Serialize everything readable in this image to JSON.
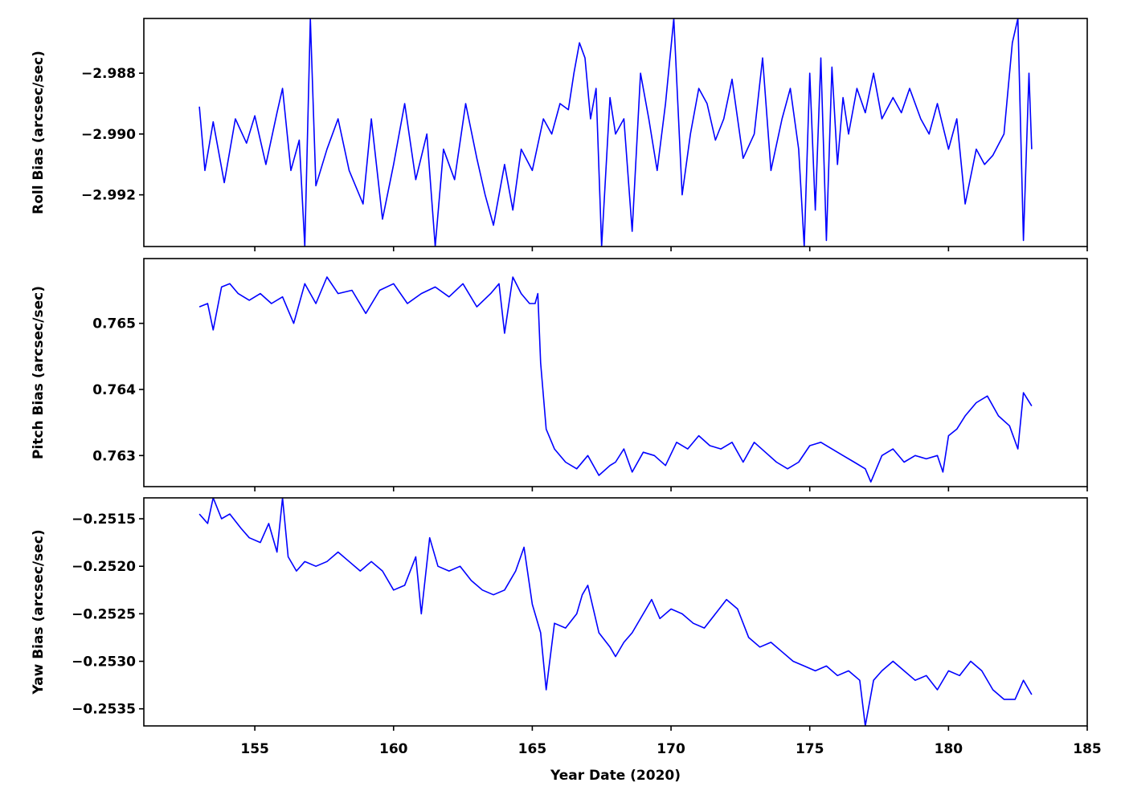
{
  "chart_data": {
    "type": "line",
    "xlabel": "Year Date (2020)",
    "xlim": [
      151,
      185
    ],
    "xticks": [
      155,
      160,
      165,
      170,
      175,
      180,
      185
    ],
    "line_color": "#0000ff",
    "grid": false,
    "panels": [
      {
        "name": "roll",
        "ylabel": "Roll Bias (arcsec/sec)",
        "ylim": [
          -2.9937,
          -2.9862
        ],
        "yticks": [
          -2.992,
          -2.99,
          -2.988
        ],
        "ytick_labels": [
          "−2.992",
          "−2.990",
          "−2.988"
        ],
        "series": {
          "x": [
            153.0,
            153.2,
            153.5,
            153.9,
            154.3,
            154.7,
            155.0,
            155.4,
            155.8,
            156.0,
            156.3,
            156.6,
            156.8,
            157.0,
            157.2,
            157.6,
            158.0,
            158.4,
            158.9,
            159.2,
            159.6,
            160.0,
            160.4,
            160.8,
            161.2,
            161.5,
            161.8,
            162.2,
            162.6,
            163.0,
            163.3,
            163.6,
            164.0,
            164.3,
            164.6,
            165.0,
            165.4,
            165.7,
            166.0,
            166.3,
            166.5,
            166.7,
            166.9,
            167.1,
            167.3,
            167.5,
            167.8,
            168.0,
            168.3,
            168.6,
            168.9,
            169.2,
            169.5,
            169.8,
            170.1,
            170.4,
            170.7,
            171.0,
            171.3,
            171.6,
            171.9,
            172.2,
            172.6,
            173.0,
            173.3,
            173.6,
            174.0,
            174.3,
            174.6,
            174.8,
            175.0,
            175.2,
            175.4,
            175.6,
            175.8,
            176.0,
            176.2,
            176.4,
            176.7,
            177.0,
            177.3,
            177.6,
            178.0,
            178.3,
            178.6,
            179.0,
            179.3,
            179.6,
            180.0,
            180.3,
            180.6,
            181.0,
            181.3,
            181.6,
            182.0,
            182.3,
            182.5,
            182.7,
            182.9,
            183.0
          ],
          "y": [
            -2.9891,
            -2.9912,
            -2.9896,
            -2.9916,
            -2.9895,
            -2.9903,
            -2.9894,
            -2.991,
            -2.9893,
            -2.9885,
            -2.9912,
            -2.9902,
            -2.9937,
            -2.9862,
            -2.9917,
            -2.9905,
            -2.9895,
            -2.9912,
            -2.9923,
            -2.9895,
            -2.9928,
            -2.991,
            -2.989,
            -2.9915,
            -2.99,
            -2.9937,
            -2.9905,
            -2.9915,
            -2.989,
            -2.9908,
            -2.992,
            -2.993,
            -2.991,
            -2.9925,
            -2.9905,
            -2.9912,
            -2.9895,
            -2.99,
            -2.989,
            -2.9892,
            -2.988,
            -2.987,
            -2.9875,
            -2.9895,
            -2.9885,
            -2.9937,
            -2.9888,
            -2.99,
            -2.9895,
            -2.9932,
            -2.988,
            -2.9895,
            -2.9912,
            -2.989,
            -2.9862,
            -2.992,
            -2.99,
            -2.9885,
            -2.989,
            -2.9902,
            -2.9895,
            -2.9882,
            -2.9908,
            -2.99,
            -2.9875,
            -2.9912,
            -2.9895,
            -2.9885,
            -2.9905,
            -2.9937,
            -2.988,
            -2.9925,
            -2.9875,
            -2.9935,
            -2.9878,
            -2.991,
            -2.9888,
            -2.99,
            -2.9885,
            -2.9893,
            -2.988,
            -2.9895,
            -2.9888,
            -2.9893,
            -2.9885,
            -2.9895,
            -2.99,
            -2.989,
            -2.9905,
            -2.9895,
            -2.9923,
            -2.9905,
            -2.991,
            -2.9907,
            -2.99,
            -2.987,
            -2.9862,
            -2.9935,
            -2.988,
            -2.9905
          ]
        }
      },
      {
        "name": "pitch",
        "ylabel": "Pitch Bias (arcsec/sec)",
        "ylim": [
          0.76253,
          0.76598
        ],
        "yticks": [
          0.763,
          0.764,
          0.765
        ],
        "ytick_labels": [
          "0.763",
          "0.764",
          "0.765"
        ],
        "series": {
          "x": [
            153.0,
            153.3,
            153.5,
            153.8,
            154.1,
            154.4,
            154.8,
            155.2,
            155.6,
            156.0,
            156.4,
            156.8,
            157.2,
            157.6,
            158.0,
            158.5,
            159.0,
            159.5,
            160.0,
            160.5,
            161.0,
            161.5,
            162.0,
            162.5,
            163.0,
            163.5,
            163.8,
            164.0,
            164.3,
            164.6,
            164.9,
            165.1,
            165.2,
            165.3,
            165.5,
            165.8,
            166.2,
            166.6,
            167.0,
            167.4,
            167.8,
            168.0,
            168.3,
            168.6,
            169.0,
            169.4,
            169.8,
            170.2,
            170.6,
            171.0,
            171.4,
            171.8,
            172.2,
            172.6,
            173.0,
            173.4,
            173.8,
            174.2,
            174.6,
            175.0,
            175.4,
            175.8,
            176.2,
            176.6,
            177.0,
            177.2,
            177.6,
            178.0,
            178.4,
            178.8,
            179.2,
            179.6,
            179.8,
            180.0,
            180.3,
            180.6,
            181.0,
            181.4,
            181.8,
            182.2,
            182.5,
            182.7,
            183.0
          ],
          "y": [
            0.76525,
            0.7653,
            0.7649,
            0.76555,
            0.7656,
            0.76545,
            0.76535,
            0.76545,
            0.7653,
            0.7654,
            0.765,
            0.7656,
            0.7653,
            0.7657,
            0.76545,
            0.7655,
            0.76515,
            0.7655,
            0.7656,
            0.7653,
            0.76545,
            0.76555,
            0.7654,
            0.7656,
            0.76525,
            0.76545,
            0.7656,
            0.76485,
            0.7657,
            0.76545,
            0.7653,
            0.7653,
            0.76545,
            0.7644,
            0.7634,
            0.7631,
            0.7629,
            0.7628,
            0.763,
            0.7627,
            0.76285,
            0.7629,
            0.7631,
            0.76275,
            0.76305,
            0.763,
            0.76285,
            0.7632,
            0.7631,
            0.7633,
            0.76315,
            0.7631,
            0.7632,
            0.7629,
            0.7632,
            0.76305,
            0.7629,
            0.7628,
            0.7629,
            0.76315,
            0.7632,
            0.7631,
            0.763,
            0.7629,
            0.7628,
            0.7626,
            0.763,
            0.7631,
            0.7629,
            0.763,
            0.76295,
            0.763,
            0.76275,
            0.7633,
            0.7634,
            0.7636,
            0.7638,
            0.7639,
            0.7636,
            0.76345,
            0.7631,
            0.76395,
            0.76375
          ]
        }
      },
      {
        "name": "yaw",
        "ylabel": "Yaw Bias (arcsec/sec)",
        "ylim": [
          -0.25368,
          -0.25128
        ],
        "yticks": [
          -0.2535,
          -0.253,
          -0.2525,
          -0.252,
          -0.2515
        ],
        "ytick_labels": [
          "−0.2535",
          "−0.2530",
          "−0.2525",
          "−0.2520",
          "−0.2515"
        ],
        "series": {
          "x": [
            153.0,
            153.3,
            153.5,
            153.8,
            154.1,
            154.5,
            154.8,
            155.2,
            155.5,
            155.8,
            156.0,
            156.2,
            156.5,
            156.8,
            157.2,
            157.6,
            158.0,
            158.4,
            158.8,
            159.2,
            159.6,
            160.0,
            160.4,
            160.8,
            161.0,
            161.3,
            161.6,
            162.0,
            162.4,
            162.8,
            163.2,
            163.6,
            164.0,
            164.4,
            164.7,
            165.0,
            165.3,
            165.5,
            165.8,
            166.2,
            166.6,
            166.8,
            167.0,
            167.4,
            167.8,
            168.0,
            168.3,
            168.6,
            169.0,
            169.3,
            169.6,
            170.0,
            170.4,
            170.8,
            171.2,
            171.6,
            172.0,
            172.4,
            172.8,
            173.2,
            173.6,
            174.0,
            174.4,
            174.8,
            175.2,
            175.6,
            176.0,
            176.4,
            176.8,
            177.0,
            177.3,
            177.6,
            178.0,
            178.4,
            178.8,
            179.2,
            179.6,
            180.0,
            180.4,
            180.8,
            181.2,
            181.6,
            182.0,
            182.4,
            182.7,
            183.0
          ],
          "y": [
            -0.25145,
            -0.25155,
            -0.25128,
            -0.2515,
            -0.25145,
            -0.2516,
            -0.2517,
            -0.25175,
            -0.25155,
            -0.25185,
            -0.25128,
            -0.2519,
            -0.25205,
            -0.25195,
            -0.252,
            -0.25195,
            -0.25185,
            -0.25195,
            -0.25205,
            -0.25195,
            -0.25205,
            -0.25225,
            -0.2522,
            -0.2519,
            -0.2525,
            -0.2517,
            -0.252,
            -0.25205,
            -0.252,
            -0.25215,
            -0.25225,
            -0.2523,
            -0.25225,
            -0.25205,
            -0.2518,
            -0.2524,
            -0.2527,
            -0.2533,
            -0.2526,
            -0.25265,
            -0.2525,
            -0.2523,
            -0.2522,
            -0.2527,
            -0.25285,
            -0.25295,
            -0.2528,
            -0.2527,
            -0.2525,
            -0.25235,
            -0.25255,
            -0.25245,
            -0.2525,
            -0.2526,
            -0.25265,
            -0.2525,
            -0.25235,
            -0.25245,
            -0.25275,
            -0.25285,
            -0.2528,
            -0.2529,
            -0.253,
            -0.25305,
            -0.2531,
            -0.25305,
            -0.25315,
            -0.2531,
            -0.2532,
            -0.25368,
            -0.2532,
            -0.2531,
            -0.253,
            -0.2531,
            -0.2532,
            -0.25315,
            -0.2533,
            -0.2531,
            -0.25315,
            -0.253,
            -0.2531,
            -0.2533,
            -0.2534,
            -0.2534,
            -0.2532,
            -0.25335
          ]
        }
      }
    ]
  }
}
